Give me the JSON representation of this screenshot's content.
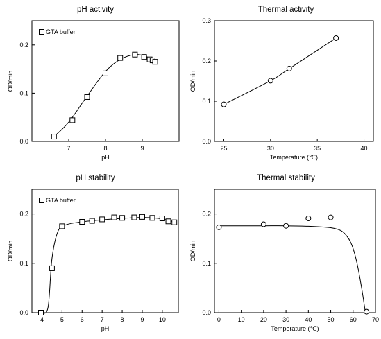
{
  "chart_data": [
    {
      "type": "scatter",
      "title": "pH activity",
      "xlabel": "pH",
      "ylabel": "OD/min",
      "xlim": [
        6.0,
        10.0
      ],
      "ylim": [
        0.0,
        0.25
      ],
      "xticks": [
        7,
        8,
        9
      ],
      "yticks": [
        0.0,
        0.1,
        0.2
      ],
      "xtick_labels": [
        "7",
        "8",
        "9"
      ],
      "ytick_labels": [
        "0.0",
        "0.1",
        "0.2"
      ],
      "marker": "square",
      "legend": {
        "position": "top-left",
        "label": "GTA buffer"
      },
      "series": [
        {
          "name": "GTA buffer",
          "x": [
            6.6,
            7.1,
            7.5,
            8.0,
            8.4,
            8.8,
            9.05,
            9.2,
            9.28,
            9.35
          ],
          "y": [
            0.01,
            0.044,
            0.092,
            0.141,
            0.173,
            0.18,
            0.175,
            0.17,
            0.168,
            0.165
          ]
        }
      ],
      "fit_curve": {
        "x": [
          6.6,
          7.0,
          7.5,
          8.0,
          8.4,
          8.8,
          9.1,
          9.35
        ],
        "y": [
          0.01,
          0.04,
          0.094,
          0.145,
          0.17,
          0.18,
          0.176,
          0.166
        ]
      }
    },
    {
      "type": "line",
      "title": "Thermal activity",
      "xlabel": "Temperature (℃)",
      "ylabel": "OD/min",
      "xlim": [
        24,
        41
      ],
      "ylim": [
        0.0,
        0.3
      ],
      "xticks": [
        25,
        30,
        35,
        40
      ],
      "yticks": [
        0.0,
        0.1,
        0.2,
        0.3
      ],
      "xtick_labels": [
        "25",
        "30",
        "35",
        "40"
      ],
      "ytick_labels": [
        "0.0",
        "0.1",
        "0.2",
        "0.3"
      ],
      "marker": "circle",
      "series": [
        {
          "x": [
            25,
            30,
            32,
            37
          ],
          "y": [
            0.092,
            0.151,
            0.181,
            0.257
          ]
        }
      ],
      "fit_curve": {
        "x": [
          25,
          30,
          32,
          37
        ],
        "y": [
          0.092,
          0.151,
          0.181,
          0.257
        ]
      }
    },
    {
      "type": "scatter",
      "title": "pH stability",
      "xlabel": "pH",
      "ylabel": "OD/min",
      "xlim": [
        3.5,
        10.8
      ],
      "ylim": [
        0.0,
        0.25
      ],
      "xticks": [
        4,
        5,
        6,
        7,
        8,
        9,
        10
      ],
      "yticks": [
        0.0,
        0.1,
        0.2
      ],
      "xtick_labels": [
        "4",
        "5",
        "6",
        "7",
        "8",
        "9",
        "10"
      ],
      "ytick_labels": [
        "0.0",
        "0.1",
        "0.2"
      ],
      "marker": "square",
      "legend": {
        "position": "top-left",
        "label": "GTA buffer"
      },
      "series": [
        {
          "name": "GTA buffer",
          "x": [
            3.95,
            4.5,
            5.0,
            6.0,
            6.5,
            7.0,
            7.6,
            8.0,
            8.6,
            9.0,
            9.5,
            10.0,
            10.3,
            10.6
          ],
          "y": [
            0.0,
            0.09,
            0.175,
            0.184,
            0.186,
            0.189,
            0.193,
            0.192,
            0.193,
            0.194,
            0.192,
            0.191,
            0.185,
            0.183
          ]
        }
      ],
      "fit_curve": {
        "x": [
          3.95,
          4.3,
          4.5,
          4.8,
          5.2,
          6.0,
          7.0,
          8.0,
          9.0,
          9.8,
          10.3,
          10.7
        ],
        "y": [
          0.0,
          0.01,
          0.11,
          0.165,
          0.178,
          0.184,
          0.188,
          0.191,
          0.193,
          0.191,
          0.187,
          0.182
        ]
      }
    },
    {
      "type": "scatter",
      "title": "Thermal stability",
      "xlabel": "Temperature (℃)",
      "ylabel": "OD/min",
      "xlim": [
        -2,
        70
      ],
      "ylim": [
        0.0,
        0.25
      ],
      "xticks": [
        0,
        10,
        20,
        30,
        40,
        50,
        60,
        70
      ],
      "yticks": [
        0.0,
        0.1,
        0.2
      ],
      "xtick_labels": [
        "0",
        "10",
        "20",
        "30",
        "40",
        "50",
        "60",
        "70"
      ],
      "ytick_labels": [
        "0.0",
        "0.1",
        "0.2"
      ],
      "marker": "circle",
      "series": [
        {
          "x": [
            0,
            20,
            30,
            40,
            50,
            66
          ],
          "y": [
            0.173,
            0.179,
            0.176,
            0.191,
            0.193,
            0.002
          ]
        }
      ],
      "fit_curve": {
        "x": [
          0,
          10,
          20,
          30,
          40,
          50,
          55,
          58,
          60,
          62,
          64,
          65.5
        ],
        "y": [
          0.176,
          0.176,
          0.176,
          0.176,
          0.175,
          0.172,
          0.165,
          0.15,
          0.13,
          0.095,
          0.045,
          0.0
        ]
      }
    }
  ]
}
